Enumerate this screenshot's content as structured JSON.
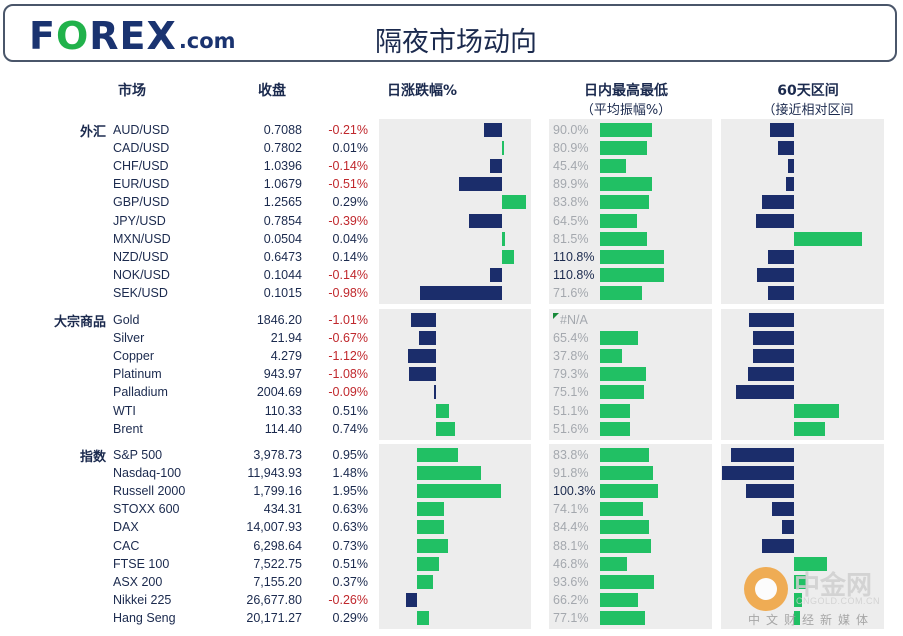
{
  "header": {
    "logo_text_pre": "F",
    "logo_text_o": "O",
    "logo_text_post": "REX",
    "logo_suffix": ".com",
    "title": "隔夜市场动向"
  },
  "columns": {
    "market": "市场",
    "close": "收盘",
    "daily_change": "日涨跌幅%",
    "intraday": "日内最高最低",
    "intraday_sub": "（平均振幅%）",
    "range60": "60天区间",
    "range60_sub": "（接近相对区间"
  },
  "colors": {
    "positive": "#21c064",
    "negative": "#1b2d6b",
    "neg_text": "#c0282d",
    "panel": "#ededed"
  },
  "watermark": {
    "big": "中金网",
    "site": "CNGOLD.COM.CN",
    "slogan": "中文财经新媒体"
  },
  "chart_data": {
    "type": "table",
    "title": "隔夜市场动向",
    "groups": [
      {
        "name": "外汇",
        "rows": [
          {
            "name": "AUD/USD",
            "close": "0.7088",
            "change": "-0.21%",
            "change_value": -0.21,
            "range": "90.0%",
            "range_value": 90.0,
            "pos60": -0.3
          },
          {
            "name": "CAD/USD",
            "close": "0.7802",
            "change": "0.01%",
            "change_value": 0.01,
            "range": "80.9%",
            "range_value": 80.9,
            "pos60": -0.2
          },
          {
            "name": "CHF/USD",
            "close": "1.0396",
            "change": "-0.14%",
            "change_value": -0.14,
            "range": "45.4%",
            "range_value": 45.4,
            "pos60": -0.07
          },
          {
            "name": "EUR/USD",
            "close": "1.0679",
            "change": "-0.51%",
            "change_value": -0.51,
            "range": "89.9%",
            "range_value": 89.9,
            "pos60": -0.1
          },
          {
            "name": "GBP/USD",
            "close": "1.2565",
            "change": "0.29%",
            "change_value": 0.29,
            "range": "83.8%",
            "range_value": 83.8,
            "pos60": -0.4
          },
          {
            "name": "JPY/USD",
            "close": "0.7854",
            "change": "-0.39%",
            "change_value": -0.39,
            "range": "64.5%",
            "range_value": 64.5,
            "pos60": -0.48
          },
          {
            "name": "MXN/USD",
            "close": "0.0504",
            "change": "0.04%",
            "change_value": 0.04,
            "range": "81.5%",
            "range_value": 81.5,
            "pos60": 0.85
          },
          {
            "name": "NZD/USD",
            "close": "0.6473",
            "change": "0.14%",
            "change_value": 0.14,
            "range": "110.8%",
            "range_value": 110.8,
            "pos60": -0.33
          },
          {
            "name": "NOK/USD",
            "close": "0.1044",
            "change": "-0.14%",
            "change_value": -0.14,
            "range": "110.8%",
            "range_value": 110.8,
            "pos60": -0.46
          },
          {
            "name": "SEK/USD",
            "close": "0.1015",
            "change": "-0.98%",
            "change_value": -0.98,
            "range": "71.6%",
            "range_value": 71.6,
            "pos60": -0.33
          }
        ]
      },
      {
        "name": "大宗商品",
        "rows": [
          {
            "name": "Gold",
            "close": "1846.20",
            "change": "-1.01%",
            "change_value": -1.01,
            "range": "#N/A",
            "range_value": null,
            "pos60": -0.56
          },
          {
            "name": "Silver",
            "close": "21.94",
            "change": "-0.67%",
            "change_value": -0.67,
            "range": "65.4%",
            "range_value": 65.4,
            "pos60": -0.51
          },
          {
            "name": "Copper",
            "close": "4.279",
            "change": "-1.12%",
            "change_value": -1.12,
            "range": "37.8%",
            "range_value": 37.8,
            "pos60": -0.51
          },
          {
            "name": "Platinum",
            "close": "943.97",
            "change": "-1.08%",
            "change_value": -1.08,
            "range": "79.3%",
            "range_value": 79.3,
            "pos60": -0.58
          },
          {
            "name": "Palladium",
            "close": "2004.69",
            "change": "-0.09%",
            "change_value": -0.09,
            "range": "75.1%",
            "range_value": 75.1,
            "pos60": -0.72
          },
          {
            "name": "WTI",
            "close": "110.33",
            "change": "0.51%",
            "change_value": 0.51,
            "range": "51.1%",
            "range_value": 51.1,
            "pos60": 0.56
          },
          {
            "name": "Brent",
            "close": "114.40",
            "change": "0.74%",
            "change_value": 0.74,
            "range": "51.6%",
            "range_value": 51.6,
            "pos60": 0.39
          }
        ]
      },
      {
        "name": "指数",
        "rows": [
          {
            "name": "S&P 500",
            "close": "3,978.73",
            "change": "0.95%",
            "change_value": 0.95,
            "range": "83.8%",
            "range_value": 83.8,
            "pos60": -0.79
          },
          {
            "name": "Nasdaq-100",
            "close": "11,943.93",
            "change": "1.48%",
            "change_value": 1.48,
            "range": "91.8%",
            "range_value": 91.8,
            "pos60": -0.9
          },
          {
            "name": "Russell 2000",
            "close": "1,799.16",
            "change": "1.95%",
            "change_value": 1.95,
            "range": "100.3%",
            "range_value": 100.3,
            "pos60": -0.6
          },
          {
            "name": "STOXX 600",
            "close": "434.31",
            "change": "0.63%",
            "change_value": 0.63,
            "range": "74.1%",
            "range_value": 74.1,
            "pos60": -0.28
          },
          {
            "name": "DAX",
            "close": "14,007.93",
            "change": "0.63%",
            "change_value": 0.63,
            "range": "84.4%",
            "range_value": 84.4,
            "pos60": -0.15
          },
          {
            "name": "CAC",
            "close": "6,298.64",
            "change": "0.73%",
            "change_value": 0.73,
            "range": "88.1%",
            "range_value": 88.1,
            "pos60": -0.4
          },
          {
            "name": "FTSE 100",
            "close": "7,522.75",
            "change": "0.51%",
            "change_value": 0.51,
            "range": "46.8%",
            "range_value": 46.8,
            "pos60": 0.41
          },
          {
            "name": "ASX 200",
            "close": "7,155.20",
            "change": "0.37%",
            "change_value": 0.37,
            "range": "93.6%",
            "range_value": 93.6,
            "pos60": 0.15
          },
          {
            "name": "Nikkei 225",
            "close": "26,677.80",
            "change": "-0.26%",
            "change_value": -0.26,
            "range": "66.2%",
            "range_value": 66.2,
            "pos60": 0.1
          },
          {
            "name": "Hang Seng",
            "close": "20,171.27",
            "change": "0.29%",
            "change_value": 0.29,
            "range": "77.1%",
            "range_value": 77.1,
            "pos60": 0.08
          }
        ]
      }
    ]
  }
}
